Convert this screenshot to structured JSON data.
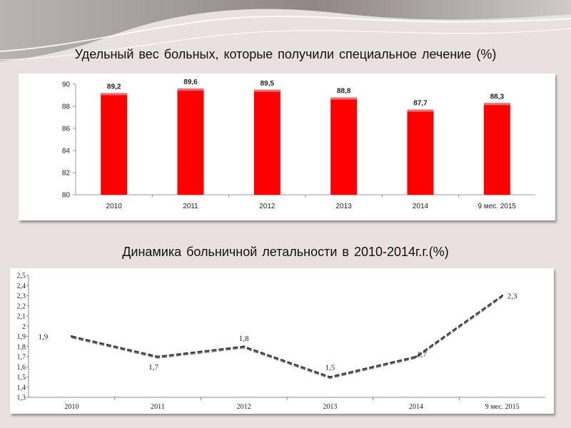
{
  "charts": [
    {
      "title": "Удельный вес больных, которые  получили  специальное лечение  (%)"
    },
    {
      "title": "Динамика  больничной  летальности   в 2010-2014г.г.(%)"
    }
  ],
  "colors": {
    "bar": "#ff0000",
    "line": "#404040",
    "background": "#e9e1e1"
  },
  "chart_data": [
    {
      "type": "bar",
      "title": "Удельный вес больных, которые  получили  специальное лечение  (%)",
      "categories": [
        "2010",
        "2011",
        "2012",
        "2013",
        "2014",
        "9 мес. 2015"
      ],
      "values": [
        89.2,
        89.6,
        89.5,
        88.8,
        87.7,
        88.3
      ],
      "value_labels": [
        "89,2",
        "89,6",
        "89,5",
        "88,8",
        "87,7",
        "88,3"
      ],
      "ylim": [
        80,
        90
      ],
      "yticks": [
        "80",
        "82",
        "84",
        "86",
        "88",
        "90"
      ],
      "grid": false,
      "legend": "none"
    },
    {
      "type": "line",
      "title": "Динамика  больничной  летальности   в 2010-2014г.г.(%)",
      "categories": [
        "2010",
        "2011",
        "2012",
        "2013",
        "2014",
        "9 мес. 2015"
      ],
      "values": [
        1.9,
        1.7,
        1.8,
        1.5,
        1.7,
        2.3
      ],
      "value_labels": [
        "1,9",
        "1,7",
        "1,8",
        "1,5",
        "1,7",
        "2,3"
      ],
      "ylim": [
        1.3,
        2.5
      ],
      "yticks": [
        "1,3",
        "1,4",
        "1,5",
        "1,6",
        "1,7",
        "1,8",
        "1,9",
        "2",
        "2,1",
        "2,2",
        "2,3",
        "2,4",
        "2,5"
      ],
      "grid": false,
      "legend": "none"
    }
  ]
}
